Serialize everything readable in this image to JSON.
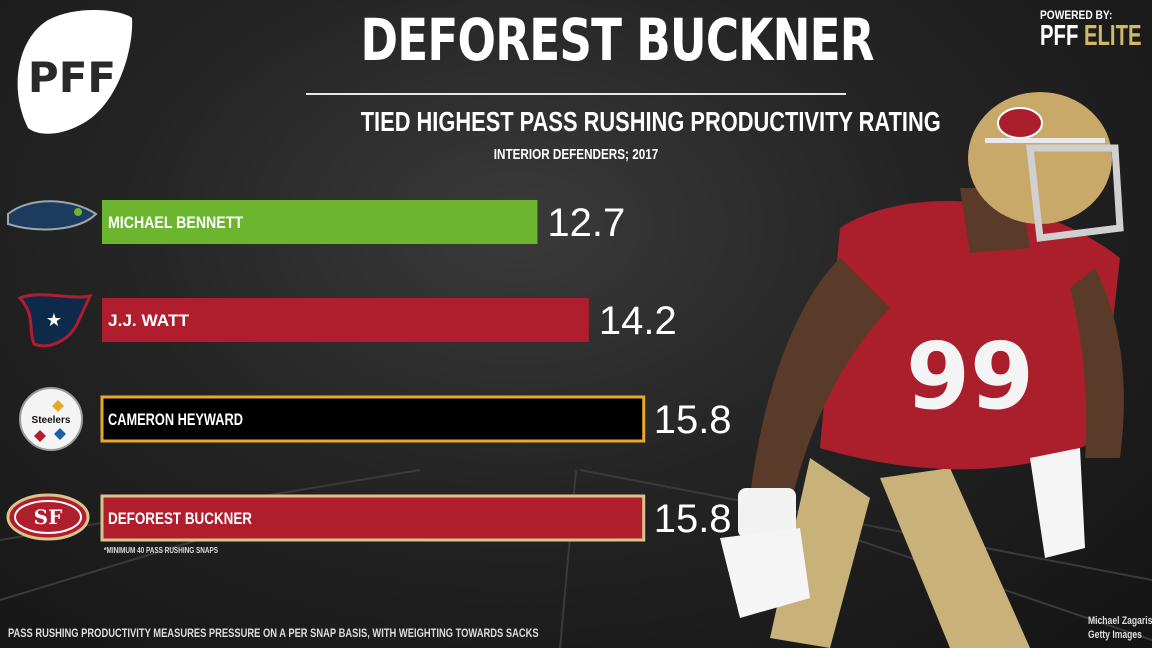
{
  "header": {
    "title": "DEFOREST BUCKNER",
    "subtitle": "TIED HIGHEST PASS RUSHING PRODUCTIVITY RATING",
    "subnote": "INTERIOR DEFENDERS; 2017"
  },
  "branding": {
    "logo_text": "PFF",
    "powered_by": "POWERED BY:",
    "elite_prefix": "PFF",
    "elite_suffix": "ELITE"
  },
  "chart_data": {
    "type": "bar",
    "orientation": "horizontal",
    "title": "TIED HIGHEST PASS RUSHING PRODUCTIVITY RATING",
    "subtitle": "INTERIOR DEFENDERS; 2017",
    "categories": [
      "MICHAEL BENNETT",
      "J.J. WATT",
      "CAMERON HEYWARD",
      "DEFOREST BUCKNER"
    ],
    "values": [
      12.7,
      14.2,
      15.8,
      15.8
    ],
    "value_labels": [
      "12.7",
      "14.2",
      "15.8",
      "15.8"
    ],
    "teams": [
      "Seahawks",
      "Texans",
      "Steelers",
      "49ers"
    ],
    "bar_colors": [
      "#6bb52f",
      "#b01e2d",
      "#000000",
      "#b01e2d"
    ],
    "bar_borders": [
      "none",
      "none",
      "#e8a92a",
      "#d9c48a"
    ],
    "xlim": [
      0,
      17.5
    ],
    "grid": false
  },
  "logos": {
    "steelers_text": "Steelers",
    "niners_text": "SF"
  },
  "footer": {
    "min_note": "*MINIMUM 40 PASS RUSHING SNAPS",
    "definition": "PASS RUSHING PRODUCTIVITY MEASURES PRESSURE ON A PER SNAP BASIS, WITH WEIGHTING TOWARDS SACKS",
    "credit_line1": "Michael Zagaris/",
    "credit_line2": "Getty Images"
  },
  "player": {
    "jersey_number": "99"
  },
  "colors": {
    "background": "#242424",
    "green": "#6bb52f",
    "red": "#b01e2d",
    "gold": "#e8a92a",
    "niners_gold": "#d9c48a"
  }
}
